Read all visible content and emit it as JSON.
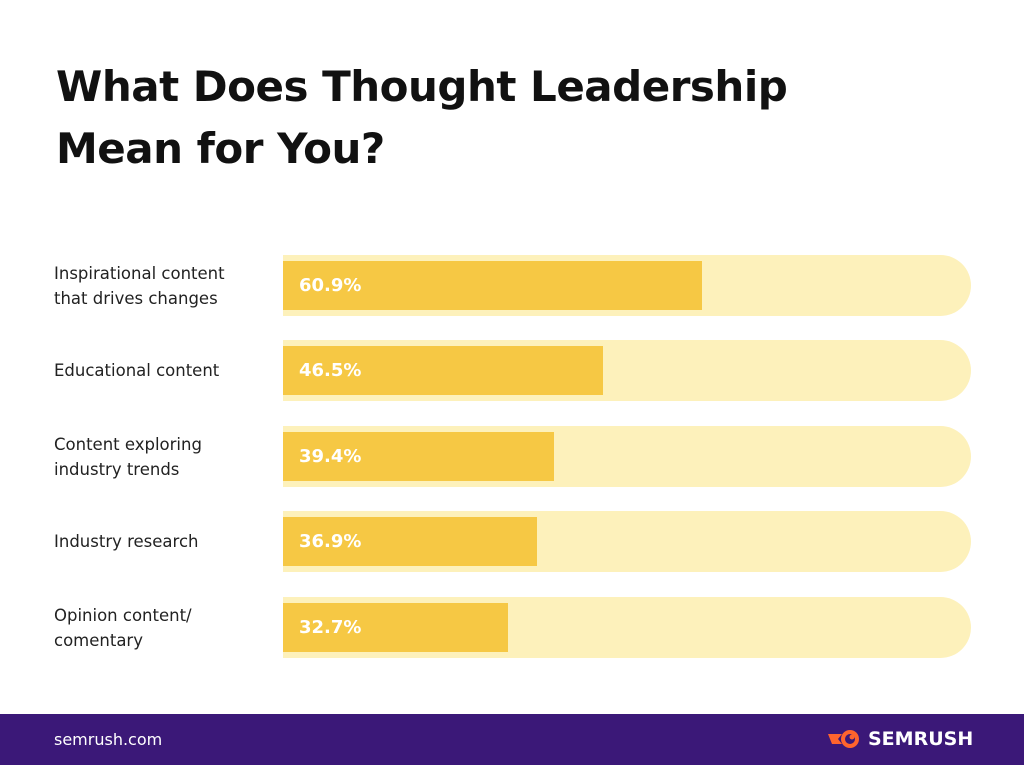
{
  "chart_data": {
    "type": "bar",
    "orientation": "horizontal",
    "title": "What Does Thought Leadership Mean for You?",
    "categories": [
      "Inspirational content\nthat drives changes",
      "Educational content",
      "Content exploring\nindustry trends",
      "Industry research",
      "Opinion content/\ncomentary"
    ],
    "values": [
      60.9,
      46.5,
      39.4,
      36.9,
      32.7
    ],
    "value_labels": [
      "60.9%",
      "46.5%",
      "39.4%",
      "36.9%",
      "32.7%"
    ],
    "xlim": [
      0,
      100
    ],
    "grid": false,
    "colors": {
      "bar": "#f6c844",
      "track": "#fdf1bb"
    }
  },
  "footer": {
    "site": "semrush.com",
    "brand": "SEMRUSH",
    "brand_icon": "semrush-fireball-icon",
    "bg": "#3b1878",
    "accent": "#ff642d"
  }
}
